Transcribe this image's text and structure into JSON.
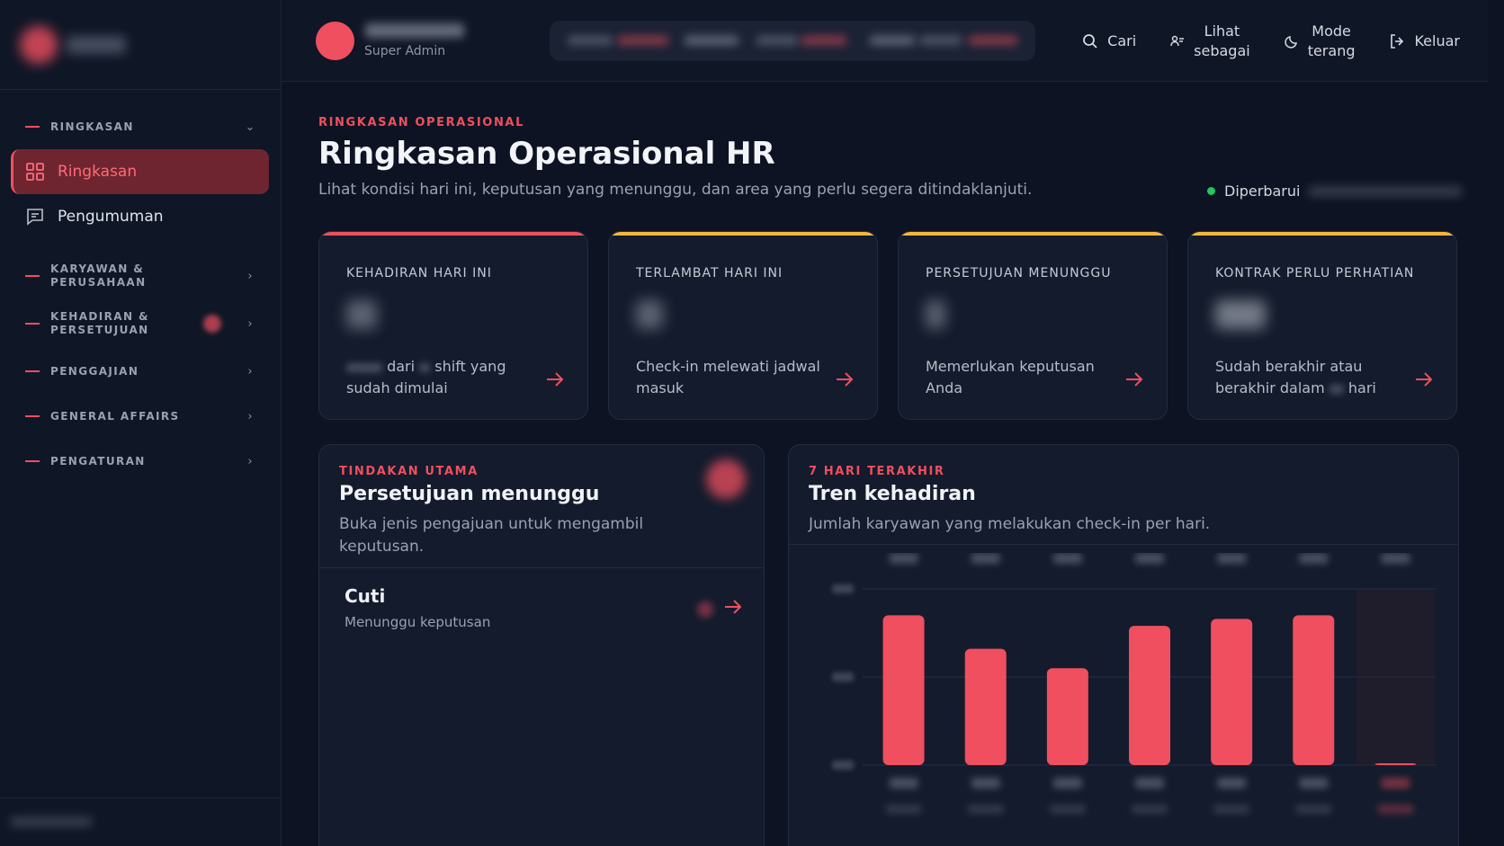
{
  "sidebar": {
    "groups": [
      {
        "label": "RINGKASAN",
        "expanded": true
      },
      {
        "label": "KARYAWAN & PERUSAHAAN"
      },
      {
        "label": "KEHADIRAN &\nPERSETUJUAN"
      },
      {
        "label": "PENGGAJIAN"
      },
      {
        "label": "GENERAL AFFAIRS"
      },
      {
        "label": "PENGATURAN"
      }
    ],
    "items": [
      {
        "label": "Ringkasan",
        "icon": "grid-icon",
        "active": true
      },
      {
        "label": "Pengumuman",
        "icon": "message-icon"
      }
    ]
  },
  "header": {
    "user_role": "Super Admin",
    "actions": [
      {
        "label": "Cari",
        "icon": "search-icon"
      },
      {
        "label": "Lihat\nsebagai",
        "icon": "view-as-icon"
      },
      {
        "label": "Mode\nterang",
        "icon": "moon-icon"
      },
      {
        "label": "Keluar",
        "icon": "logout-icon"
      }
    ]
  },
  "page": {
    "eyebrow": "RINGKASAN OPERASIONAL",
    "title": "Ringkasan Operasional HR",
    "subtitle": "Lihat kondisi hari ini, keputusan yang menunggu, dan area yang perlu segera ditindaklanjuti.",
    "updated_label": "Diperbarui"
  },
  "cards": [
    {
      "label": "KEHADIRAN HARI INI",
      "desc_a": "dari",
      "desc_b": "shift yang sudah dimulai",
      "accent": "#ef4f5f"
    },
    {
      "label": "TERLAMBAT HARI INI",
      "desc": "Check-in melewati jadwal masuk",
      "accent": "#f4b73e"
    },
    {
      "label": "PERSETUJUAN MENUNGGU",
      "desc": "Memerlukan keputusan Anda",
      "accent": "#f4b73e"
    },
    {
      "label": "KONTRAK PERLU PERHATIAN",
      "desc_a": "Sudah berakhir atau berakhir dalam",
      "desc_b": "hari",
      "accent": "#f4b73e"
    }
  ],
  "approvals": {
    "eyebrow": "TINDAKAN UTAMA",
    "title": "Persetujuan menunggu",
    "subtitle": "Buka jenis pengajuan untuk mengambil keputusan.",
    "rows": [
      {
        "title": "Cuti",
        "status": "Menunggu keputusan"
      }
    ]
  },
  "trend": {
    "eyebrow": "7 HARI TERAKHIR",
    "title": "Tren kehadiran",
    "subtitle": "Jumlah karyawan yang melakukan check-in per hari."
  },
  "chart_data": {
    "type": "bar",
    "categories": [
      "",
      "",
      "",
      "",
      "",
      "",
      ""
    ],
    "values": [
      0.85,
      0.66,
      0.55,
      0.79,
      0.83,
      0.85,
      0.01
    ],
    "note_scale": "values are fractions of the chart's top gridline; actual labels are blurred",
    "ylim": [
      0,
      1
    ],
    "grid": true,
    "bar_color": "#ef4f5f",
    "highlight_last": true
  },
  "colors": {
    "accent": "#ef4f5f",
    "warning": "#f4b73e",
    "success": "#22c55e"
  }
}
